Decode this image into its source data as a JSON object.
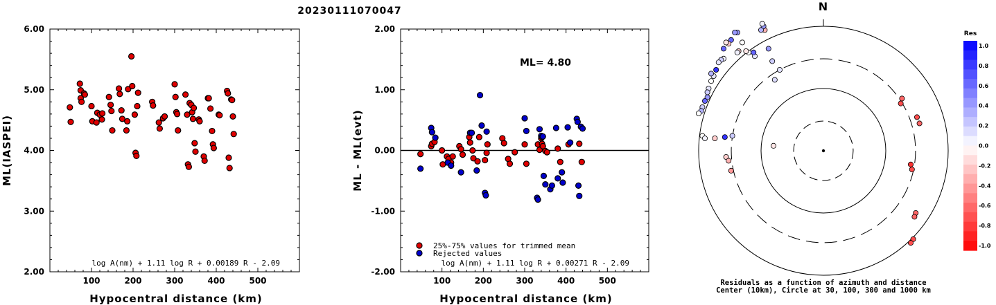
{
  "title": "20230111070047",
  "chart_data": [
    {
      "type": "scatter",
      "ylabel": "ML(IASPEI)",
      "xlabel": "Hypocentral distance (km)",
      "xlim": [
        0,
        600
      ],
      "ylim": [
        2.0,
        6.0
      ],
      "xticks": [
        "100",
        "200",
        "300",
        "400",
        "500"
      ],
      "yticks": [
        "2.00",
        "3.00",
        "4.00",
        "5.00",
        "6.00"
      ],
      "formula": "log A(nm) + 1.11 log R + 0.00189 R - 2.09",
      "series": [
        {
          "color": "#e00000",
          "points": [
            [
              48,
              4.71
            ],
            [
              50,
              4.47
            ],
            [
              72,
              5.1
            ],
            [
              74,
              4.99
            ],
            [
              74,
              4.86
            ],
            [
              76,
              4.8
            ],
            [
              82,
              4.94
            ],
            [
              84,
              4.92
            ],
            [
              100,
              4.73
            ],
            [
              102,
              4.48
            ],
            [
              112,
              4.46
            ],
            [
              114,
              4.62
            ],
            [
              120,
              4.59
            ],
            [
              125,
              4.51
            ],
            [
              126,
              4.61
            ],
            [
              142,
              4.88
            ],
            [
              146,
              4.75
            ],
            [
              148,
              4.65
            ],
            [
              150,
              4.33
            ],
            [
              166,
              5.02
            ],
            [
              168,
              4.93
            ],
            [
              172,
              4.66
            ],
            [
              174,
              4.52
            ],
            [
              184,
              4.33
            ],
            [
              186,
              4.48
            ],
            [
              188,
              5.01
            ],
            [
              196,
              5.55
            ],
            [
              198,
              5.06
            ],
            [
              204,
              4.59
            ],
            [
              206,
              3.96
            ],
            [
              208,
              3.91
            ],
            [
              210,
              4.73
            ],
            [
              212,
              4.95
            ],
            [
              246,
              4.8
            ],
            [
              248,
              4.74
            ],
            [
              262,
              4.46
            ],
            [
              264,
              4.36
            ],
            [
              272,
              4.53
            ],
            [
              276,
              4.56
            ],
            [
              300,
              5.09
            ],
            [
              302,
              4.88
            ],
            [
              304,
              4.63
            ],
            [
              306,
              4.6
            ],
            [
              308,
              4.33
            ],
            [
              326,
              4.92
            ],
            [
              330,
              4.59
            ],
            [
              332,
              3.77
            ],
            [
              334,
              3.73
            ],
            [
              336,
              4.78
            ],
            [
              340,
              4.75
            ],
            [
              342,
              4.63
            ],
            [
              344,
              4.52
            ],
            [
              346,
              4.7
            ],
            [
              348,
              4.12
            ],
            [
              350,
              3.98
            ],
            [
              358,
              4.51
            ],
            [
              360,
              4.48
            ],
            [
              370,
              3.9
            ],
            [
              372,
              3.83
            ],
            [
              380,
              4.86
            ],
            [
              382,
              4.86
            ],
            [
              386,
              4.69
            ],
            [
              390,
              4.32
            ],
            [
              392,
              4.1
            ],
            [
              394,
              4.04
            ],
            [
              406,
              4.59
            ],
            [
              408,
              4.58
            ],
            [
              426,
              4.98
            ],
            [
              428,
              4.94
            ],
            [
              430,
              3.88
            ],
            [
              432,
              3.71
            ],
            [
              436,
              4.84
            ],
            [
              438,
              4.83
            ],
            [
              440,
              4.56
            ],
            [
              442,
              4.27
            ]
          ]
        }
      ]
    },
    {
      "type": "scatter",
      "ylabel": "ML - ML(evt)",
      "xlabel": "Hypocentral distance (km)",
      "xlim": [
        0,
        600
      ],
      "ylim": [
        -2.0,
        2.0
      ],
      "xticks": [
        "100",
        "200",
        "300",
        "400",
        "500"
      ],
      "yticks": [
        "-2.00",
        "-1.00",
        "0.00",
        "1.00",
        "2.00"
      ],
      "ml_label": "ML= 4.80",
      "formula": "log A(nm) + 1.11 log R + 0.00271 R - 2.09",
      "legend": [
        {
          "color": "#e00000",
          "label": "25%-75% values for trimmed mean"
        },
        {
          "color": "#0000cc",
          "label": "Rejected values"
        }
      ],
      "series": [
        {
          "name": "25%-75% values for trimmed mean",
          "color": "#e00000",
          "points": [
            [
              48,
              -0.06
            ],
            [
              74,
              0.07
            ],
            [
              76,
              0.11
            ],
            [
              82,
              0.14
            ],
            [
              100,
              0.0
            ],
            [
              102,
              -0.23
            ],
            [
              112,
              -0.1
            ],
            [
              116,
              -0.14
            ],
            [
              122,
              -0.2
            ],
            [
              126,
              -0.1
            ],
            [
              142,
              0.07
            ],
            [
              146,
              0.02
            ],
            [
              150,
              -0.07
            ],
            [
              166,
              0.22
            ],
            [
              168,
              0.13
            ],
            [
              174,
              0.0
            ],
            [
              176,
              -0.13
            ],
            [
              186,
              -0.18
            ],
            [
              190,
              0.22
            ],
            [
              204,
              -0.16
            ],
            [
              208,
              -0.04
            ],
            [
              210,
              0.1
            ],
            [
              246,
              0.2
            ],
            [
              250,
              0.12
            ],
            [
              260,
              -0.14
            ],
            [
              264,
              -0.22
            ],
            [
              276,
              -0.03
            ],
            [
              300,
              0.1
            ],
            [
              304,
              -0.22
            ],
            [
              332,
              0.1
            ],
            [
              336,
              0.01
            ],
            [
              340,
              0.2
            ],
            [
              342,
              0.11
            ],
            [
              344,
              0.07
            ],
            [
              350,
              -0.01
            ],
            [
              354,
              -0.03
            ],
            [
              380,
              0.03
            ],
            [
              386,
              -0.19
            ],
            [
              406,
              0.1
            ],
            [
              432,
              0.11
            ],
            [
              438,
              -0.19
            ]
          ]
        },
        {
          "name": "Rejected values",
          "color": "#0000cc",
          "points": [
            [
              48,
              -0.3
            ],
            [
              74,
              0.37
            ],
            [
              76,
              0.3
            ],
            [
              84,
              0.21
            ],
            [
              114,
              -0.2
            ],
            [
              122,
              -0.25
            ],
            [
              146,
              -0.36
            ],
            [
              168,
              0.29
            ],
            [
              172,
              0.29
            ],
            [
              184,
              -0.33
            ],
            [
              192,
              0.91
            ],
            [
              196,
              0.41
            ],
            [
              204,
              -0.7
            ],
            [
              206,
              -0.74
            ],
            [
              208,
              0.31
            ],
            [
              300,
              0.53
            ],
            [
              304,
              0.32
            ],
            [
              330,
              -0.78
            ],
            [
              332,
              -0.81
            ],
            [
              336,
              0.35
            ],
            [
              340,
              0.24
            ],
            [
              342,
              0.22
            ],
            [
              344,
              0.23
            ],
            [
              346,
              -0.42
            ],
            [
              350,
              -0.56
            ],
            [
              362,
              -0.64
            ],
            [
              366,
              -0.58
            ],
            [
              376,
              0.37
            ],
            [
              380,
              -0.46
            ],
            [
              390,
              -0.36
            ],
            [
              392,
              -0.53
            ],
            [
              404,
              0.38
            ],
            [
              410,
              0.13
            ],
            [
              426,
              0.52
            ],
            [
              428,
              0.47
            ],
            [
              430,
              -0.58
            ],
            [
              432,
              -0.75
            ],
            [
              436,
              0.39
            ],
            [
              440,
              0.36
            ]
          ]
        }
      ]
    },
    {
      "type": "polar",
      "north_label": "N",
      "caption_line1": "Residuals as a function of azimuth and distance",
      "caption_line2": "Center (10km), Circle at 30, 100, 300 and 1000 km",
      "colorbar_title": "Res",
      "colorbar_ticks": [
        "1.0",
        "0.8",
        "0.6",
        "0.4",
        "0.2",
        "0.0",
        "-0.2",
        "-0.4",
        "-0.6",
        "-0.8",
        "-1.0"
      ],
      "points": [
        [
          -0.35,
          0.65,
          0.11
        ],
        [
          -0.39,
          0.57,
          0.14
        ],
        [
          -0.41,
          0.72,
          0.2
        ],
        [
          -0.44,
          0.82,
          0.4
        ],
        [
          -0.47,
          0.97,
          -0.3
        ],
        [
          -0.48,
          1.0,
          0.4
        ],
        [
          -0.49,
          1.02,
          0.05
        ],
        [
          -0.5,
          0.97,
          0.3
        ],
        [
          -0.55,
          0.76,
          0.1
        ],
        [
          -0.56,
          0.79,
          0.6
        ],
        [
          -0.6,
          0.79,
          0.0
        ],
        [
          -0.62,
          0.8,
          -0.1
        ],
        [
          -0.65,
          0.87,
          0.0
        ],
        [
          -0.68,
          0.8,
          -0.2
        ],
        [
          -0.69,
          0.95,
          0.4
        ],
        [
          -0.69,
          0.79,
          0.05
        ],
        [
          -0.71,
          0.95,
          0.4
        ],
        [
          -0.74,
          0.89,
          0.6
        ],
        [
          -0.76,
          0.86,
          -0.2
        ],
        [
          -0.78,
          0.87,
          -0.1
        ],
        [
          -0.8,
          0.82,
          0.6
        ],
        [
          -0.8,
          0.74,
          0.05
        ],
        [
          -0.82,
          0.73,
          0.2
        ],
        [
          -0.84,
          0.71,
          0.1
        ],
        [
          -0.86,
          0.65,
          0.8
        ],
        [
          -0.88,
          0.6,
          0.1
        ],
        [
          -0.9,
          0.62,
          0.3
        ],
        [
          -0.9,
          0.56,
          0.0
        ],
        [
          -0.92,
          0.5,
          0.1
        ],
        [
          -0.93,
          0.47,
          0.2
        ],
        [
          -0.93,
          0.43,
          0.4
        ],
        [
          -0.95,
          0.4,
          0.6
        ],
        [
          -0.97,
          0.35,
          0.2
        ],
        [
          -0.98,
          0.32,
          0.3
        ],
        [
          -1.0,
          0.3,
          0.0
        ],
        [
          -0.97,
          0.12,
          0.0
        ],
        [
          -0.95,
          0.1,
          0.05
        ],
        [
          -0.87,
          0.1,
          -0.2
        ],
        [
          -0.79,
          0.11,
          0.8
        ],
        [
          -0.73,
          0.12,
          0.2
        ],
        [
          -0.78,
          -0.05,
          -0.2
        ],
        [
          -0.76,
          -0.08,
          -0.3
        ],
        [
          -0.74,
          -0.16,
          -0.4
        ],
        [
          -0.4,
          0.04,
          -0.1
        ],
        [
          0.63,
          0.42,
          -0.6
        ],
        [
          0.62,
          0.38,
          -0.7
        ],
        [
          0.75,
          0.27,
          -0.7
        ],
        [
          0.77,
          0.22,
          -0.6
        ],
        [
          0.7,
          -0.11,
          -0.8
        ],
        [
          0.71,
          -0.15,
          -0.7
        ],
        [
          0.74,
          -0.5,
          -0.6
        ],
        [
          0.73,
          -0.53,
          -0.6
        ],
        [
          0.72,
          -0.71,
          -0.7
        ],
        [
          0.7,
          -0.74,
          -0.7
        ]
      ]
    }
  ]
}
